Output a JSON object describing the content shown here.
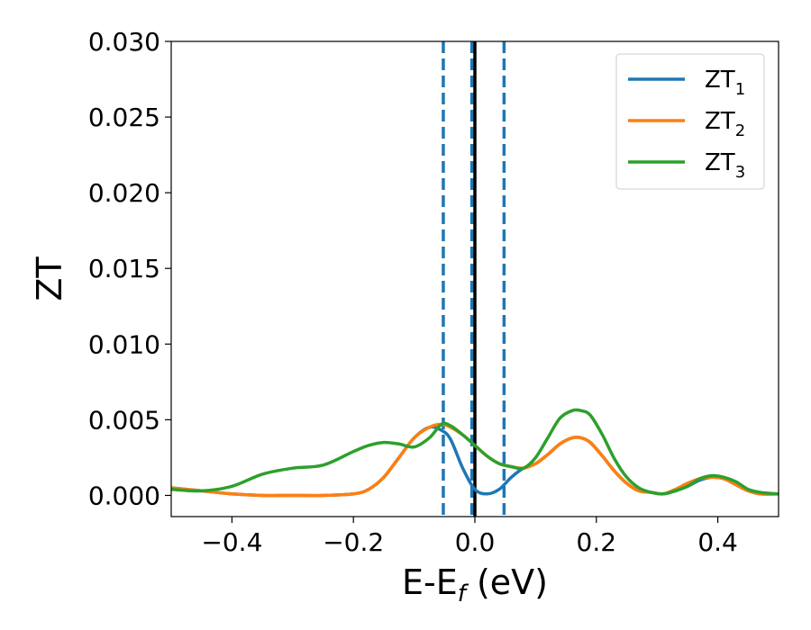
{
  "chart_data": {
    "type": "line",
    "xlabel": {
      "main": "E-E",
      "sub": "f",
      "suffix": " (eV)"
    },
    "ylabel": "ZT",
    "xlim": [
      -0.5,
      0.5
    ],
    "ylim": [
      -0.0014,
      0.03
    ],
    "xticks": [
      -0.4,
      -0.2,
      0.0,
      0.2,
      0.4
    ],
    "xtick_labels": [
      "−0.4",
      "−0.2",
      "0.0",
      "0.2",
      "0.4"
    ],
    "yticks": [
      0.0,
      0.005,
      0.01,
      0.015,
      0.02,
      0.025,
      0.03
    ],
    "ytick_labels": [
      "0.000",
      "0.005",
      "0.010",
      "0.015",
      "0.020",
      "0.025",
      "0.030"
    ],
    "grid": false,
    "legend_position": "top-right",
    "vertical_lines": [
      {
        "x": -0.052,
        "style": "dashed",
        "color": "#1f77b4"
      },
      {
        "x": -0.005,
        "style": "dashed",
        "color": "#1f77b4"
      },
      {
        "x": 0.0,
        "style": "solid",
        "color": "#000000"
      },
      {
        "x": 0.048,
        "style": "dashed",
        "color": "#1f77b4"
      }
    ],
    "x": [
      -0.5,
      -0.45,
      -0.4,
      -0.35,
      -0.3,
      -0.25,
      -0.2,
      -0.175,
      -0.15,
      -0.125,
      -0.1,
      -0.075,
      -0.055,
      -0.04,
      -0.02,
      0.0,
      0.02,
      0.04,
      0.06,
      0.08,
      0.1,
      0.12,
      0.14,
      0.16,
      0.175,
      0.19,
      0.21,
      0.23,
      0.25,
      0.27,
      0.29,
      0.31,
      0.33,
      0.35,
      0.37,
      0.39,
      0.41,
      0.43,
      0.45,
      0.47,
      0.5
    ],
    "series": [
      {
        "name": "ZT",
        "name_sub": "1",
        "color": "#1f77b4",
        "values": [
          0.0005,
          0.0003,
          0.0001,
          0.0,
          0.0,
          0.0,
          0.0001,
          0.0004,
          0.0012,
          0.0025,
          0.0038,
          0.0045,
          0.0043,
          0.0037,
          0.0018,
          0.0004,
          0.0001,
          0.0004,
          0.0012,
          0.0018,
          0.0021,
          0.0027,
          0.0034,
          0.0038,
          0.0038,
          0.0035,
          0.0026,
          0.0016,
          0.0008,
          0.0003,
          0.0002,
          0.0001,
          0.0003,
          0.0006,
          0.001,
          0.0012,
          0.0011,
          0.0007,
          0.0003,
          0.0001,
          0.0001
        ]
      },
      {
        "name": "ZT",
        "name_sub": "2",
        "color": "#ff7f0e",
        "values": [
          0.0005,
          0.0003,
          0.0001,
          0.0,
          0.0,
          0.0,
          0.0001,
          0.0004,
          0.0012,
          0.0025,
          0.0038,
          0.0045,
          0.0047,
          0.0045,
          0.004,
          0.0033,
          0.0026,
          0.0021,
          0.0019,
          0.0018,
          0.0021,
          0.0027,
          0.0034,
          0.0038,
          0.0038,
          0.0035,
          0.0026,
          0.0016,
          0.0008,
          0.0003,
          0.0002,
          0.0001,
          0.0004,
          0.0008,
          0.0011,
          0.0012,
          0.0011,
          0.0007,
          0.0003,
          0.0001,
          0.0001
        ]
      },
      {
        "name": "ZT",
        "name_sub": "3",
        "color": "#2ca02c",
        "values": [
          0.0004,
          0.0003,
          0.0006,
          0.0014,
          0.0018,
          0.002,
          0.0029,
          0.0033,
          0.0035,
          0.0034,
          0.0032,
          0.0038,
          0.0047,
          0.0046,
          0.004,
          0.0033,
          0.0026,
          0.0021,
          0.0019,
          0.0018,
          0.0025,
          0.0038,
          0.0051,
          0.0056,
          0.0056,
          0.0053,
          0.004,
          0.0024,
          0.0012,
          0.0005,
          0.0002,
          0.0001,
          0.0003,
          0.0006,
          0.0011,
          0.0013,
          0.0012,
          0.0009,
          0.0004,
          0.0002,
          0.0001
        ]
      }
    ]
  }
}
